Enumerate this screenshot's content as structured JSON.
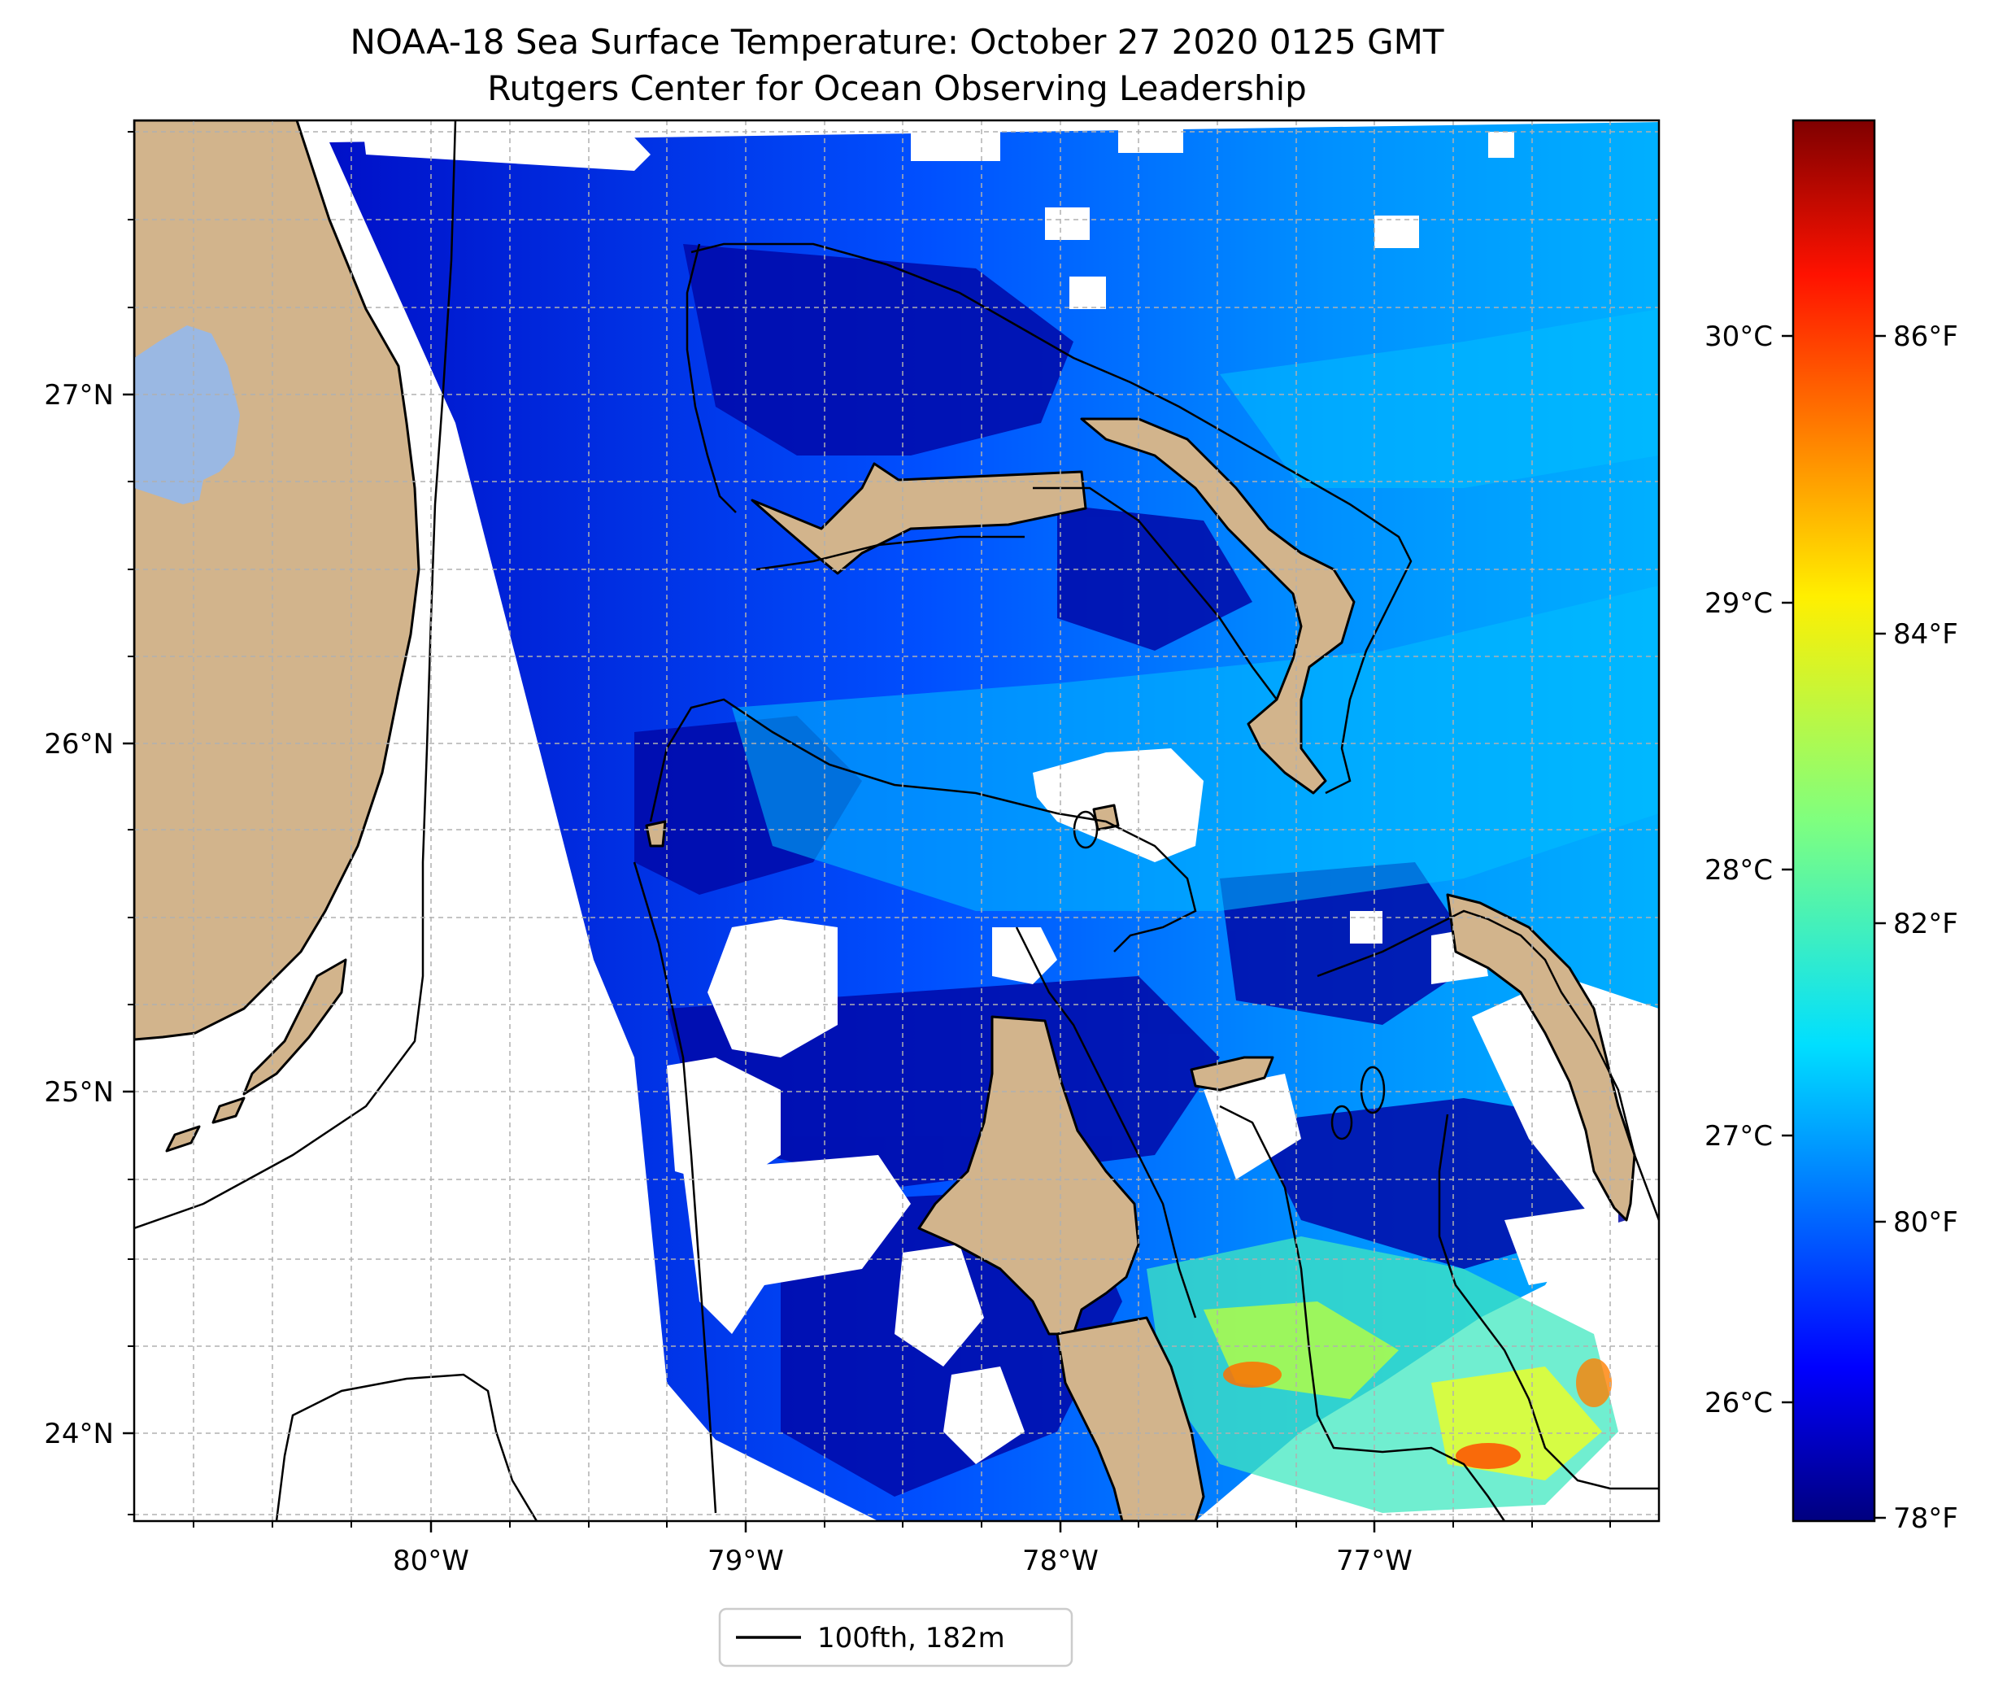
{
  "title": {
    "line1": "NOAA-18 Sea Surface Temperature: October 27 2020 0125 GMT",
    "line2": "Rutgers Center for Ocean Observing Leadership"
  },
  "axes": {
    "x_ticks": [
      "80°W",
      "79°W",
      "78°W",
      "77°W"
    ],
    "y_ticks": [
      "27°N",
      "26°N",
      "25°N",
      "24°N"
    ]
  },
  "colorbar": {
    "colormap": "jet",
    "celsius_ticks": [
      "30°C",
      "29°C",
      "28°C",
      "27°C",
      "26°C"
    ],
    "fahrenheit_ticks": [
      "86°F",
      "84°F",
      "82°F",
      "80°F",
      "78°F"
    ],
    "range_f": [
      78,
      87.5
    ]
  },
  "legend": {
    "label": "100fth, 182m"
  },
  "colors": {
    "land": "#d2b48c",
    "lake": "#9ab8e3",
    "no_data": "#ffffff",
    "sst_cold": "#00008b",
    "sst_mid": "#0055ff",
    "sst_warm": "#00c8ff"
  }
}
